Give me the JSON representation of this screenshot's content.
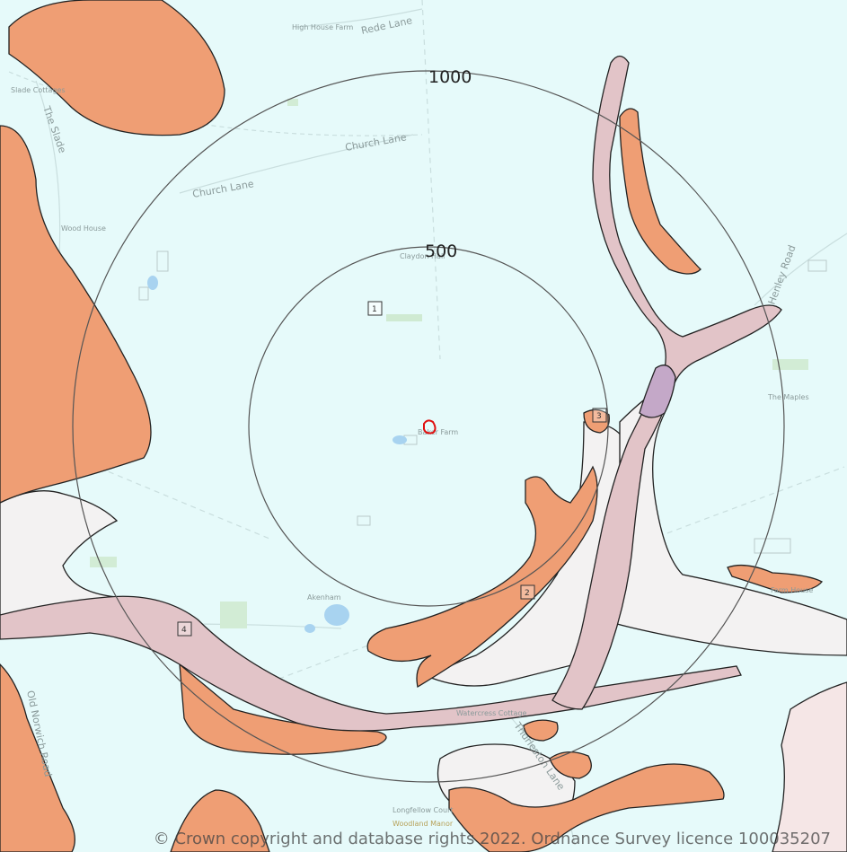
{
  "map": {
    "rings": [
      "1000",
      "500"
    ],
    "markers": [
      "1",
      "2",
      "3",
      "4"
    ],
    "roads": {
      "rede_lane": "Rede Lane",
      "church_lane_1": "Church Lane",
      "church_lane_2": "Church Lane",
      "the_slade": "The Slade",
      "henley_road": "Henley Road",
      "old_norwich_road": "Old Norwich Road",
      "thurleston_lane": "Thurleston Lane"
    },
    "places": {
      "high_house_farm": "High House Farm",
      "slade_cottages": "Slade Cottages",
      "wood_house": "Wood House",
      "claydon": "Claydon Hall",
      "site_farm": "Baker Farm",
      "the_maples": "The Maples",
      "akenham": "Akenham",
      "farm_house": "Farm House",
      "watercress": "Watercress Cottage",
      "longfellow": "Longfellow Court",
      "woodland_manor": "Woodland Manor"
    },
    "colors": {
      "background": "#e6fafa",
      "orange_deposit": "#ef9e74",
      "pink_deposit": "#e2c4c8",
      "grey_deposit": "#f3f2f2",
      "site_outline": "#e01010"
    },
    "copyright": "© Crown copyright and database rights 2022. Ordnance Survey licence 100035207"
  }
}
